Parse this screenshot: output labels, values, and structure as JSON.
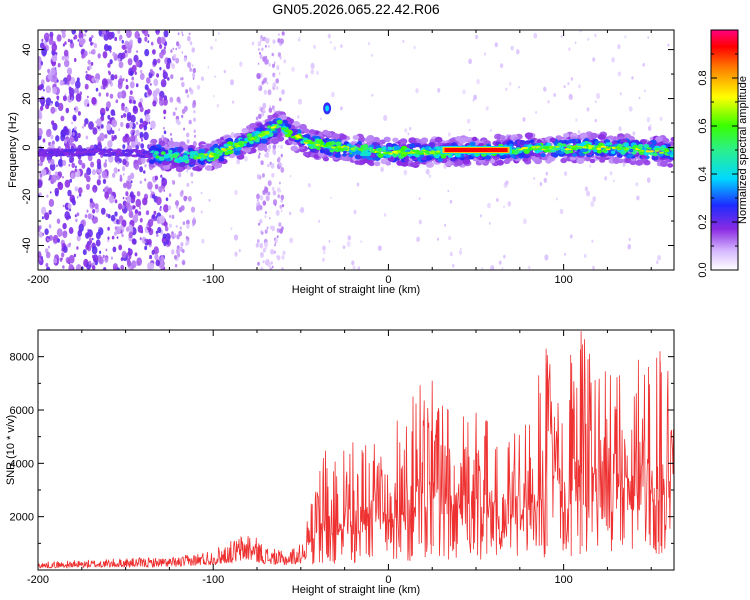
{
  "title": "GN05.2026.065.22.42.R06",
  "chart_data": [
    {
      "type": "heatmap",
      "xlabel": "Height of straight line (km)",
      "ylabel": "Frequency (Hz)",
      "xlim": [
        -200,
        163
      ],
      "ylim": [
        -50,
        48
      ],
      "xticks": [
        -200,
        -100,
        0,
        100
      ],
      "yticks": [
        -40,
        -20,
        0,
        20,
        40
      ],
      "xtick_labels": [
        "-200",
        "-100",
        "0",
        "100"
      ],
      "ytick_labels": [
        "-40",
        "-20",
        "0",
        "20",
        "40"
      ],
      "colorbar": {
        "label": "Normalized spectral amplitude",
        "range": [
          0,
          1
        ],
        "ticks": [
          0.0,
          0.2,
          0.4,
          0.6,
          0.8
        ],
        "tick_labels": [
          "0.0",
          "0.2",
          "0.4",
          "0.6",
          "0.8"
        ]
      },
      "ridge": {
        "x": [
          -200,
          -150,
          -130,
          -115,
          -100,
          -90,
          -80,
          -70,
          -62,
          -55,
          -45,
          -30,
          -15,
          0,
          15,
          30,
          60,
          90,
          120,
          150,
          163
        ],
        "freq": [
          -2,
          -2,
          -3,
          -4,
          -3,
          0,
          3,
          6,
          9,
          5,
          2,
          0,
          -1,
          -2,
          -2,
          -2,
          -1,
          0,
          0,
          -1,
          -2
        ]
      },
      "hot_segment": {
        "x_start": 32,
        "x_end": 68,
        "freq": -1,
        "amplitude": 1.0
      }
    },
    {
      "type": "line",
      "xlabel": "Height of straight line (km)",
      "ylabel": "SNR (10 * v/v)",
      "xlim": [
        -200,
        163
      ],
      "ylim": [
        0,
        9000
      ],
      "xticks": [
        -200,
        -100,
        0,
        100
      ],
      "yticks": [
        2000,
        4000,
        6000,
        8000
      ],
      "xtick_labels": [
        "-200",
        "-100",
        "0",
        "100"
      ],
      "ytick_labels": [
        "2000",
        "4000",
        "6000",
        "8000"
      ],
      "color": "#ee3030",
      "envelope": {
        "x": [
          -200,
          -150,
          -120,
          -100,
          -90,
          -80,
          -70,
          -60,
          -50,
          -40,
          -35,
          -30,
          -20,
          -10,
          0,
          10,
          20,
          30,
          40,
          50,
          60,
          65,
          70,
          80,
          90,
          100,
          110,
          120,
          130,
          140,
          150,
          163
        ],
        "peak": [
          300,
          450,
          500,
          800,
          1100,
          1500,
          900,
          700,
          1000,
          3500,
          4700,
          4200,
          4800,
          5200,
          5000,
          6200,
          7100,
          6200,
          5700,
          5900,
          5400,
          3400,
          5200,
          7000,
          8100,
          7500,
          8900,
          7600,
          7200,
          7800,
          8200,
          7200
        ]
      },
      "notable_peaks": [
        {
          "x": 25,
          "y": 7100
        },
        {
          "x": 90,
          "y": 8300
        },
        {
          "x": 110,
          "y": 8950
        },
        {
          "x": 155,
          "y": 8200
        }
      ]
    }
  ]
}
